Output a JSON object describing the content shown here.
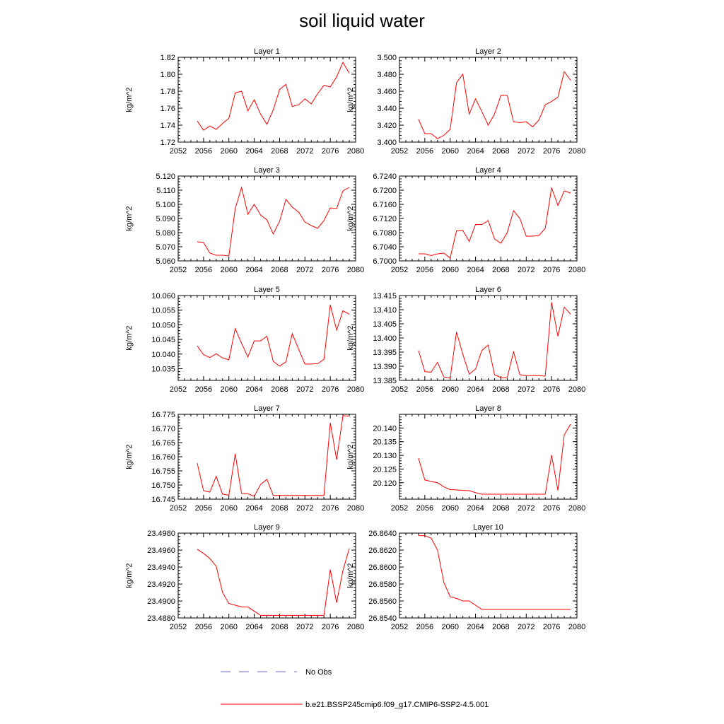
{
  "title": "soil liquid water",
  "ylabel": "kg/m^2",
  "xticks": [
    "2052",
    "2056",
    "2060",
    "2064",
    "2068",
    "2072",
    "2076",
    "2080"
  ],
  "legend": {
    "obs_label": "No Obs",
    "model_label": "b.e21.BSSP245cmip6.f09_g17.CMIP6-SSP2-4.5.001",
    "obs_color": "#6b6bd6",
    "model_color": "#ff0000"
  },
  "chart_data": [
    {
      "type": "line",
      "title": "Layer 1",
      "xlabel": "",
      "ylabel": "kg/m^2",
      "xlim": [
        2052,
        2080
      ],
      "ylim": [
        1.72,
        1.82
      ],
      "yticks": [
        "1.72",
        "1.74",
        "1.76",
        "1.78",
        "1.80",
        "1.82"
      ],
      "x": [
        2055,
        2056,
        2057,
        2058,
        2059,
        2060,
        2061,
        2062,
        2063,
        2064,
        2065,
        2066,
        2067,
        2068,
        2069,
        2070,
        2071,
        2072,
        2073,
        2074,
        2075,
        2076,
        2077,
        2078,
        2079
      ],
      "series": [
        {
          "name": "b.e21.BSSP245cmip6.f09_g17.CMIP6-SSP2-4.5.001",
          "values": [
            1.745,
            1.734,
            1.739,
            1.735,
            1.742,
            1.748,
            1.778,
            1.78,
            1.757,
            1.77,
            1.753,
            1.741,
            1.758,
            1.782,
            1.788,
            1.762,
            1.764,
            1.771,
            1.765,
            1.777,
            1.787,
            1.785,
            1.797,
            1.814,
            1.801
          ]
        }
      ]
    },
    {
      "type": "line",
      "title": "Layer 2",
      "xlabel": "",
      "ylabel": "kg/m^2",
      "xlim": [
        2052,
        2080
      ],
      "ylim": [
        3.4,
        3.5
      ],
      "yticks": [
        "3.400",
        "3.420",
        "3.440",
        "3.460",
        "3.480",
        "3.500"
      ],
      "x": [
        2055,
        2056,
        2057,
        2058,
        2059,
        2060,
        2061,
        2062,
        2063,
        2064,
        2065,
        2066,
        2067,
        2068,
        2069,
        2070,
        2071,
        2072,
        2073,
        2074,
        2075,
        2076,
        2077,
        2078,
        2079
      ],
      "series": [
        {
          "name": "b.e21.BSSP245cmip6.f09_g17.CMIP6-SSP2-4.5.001",
          "values": [
            3.427,
            3.41,
            3.41,
            3.404,
            3.408,
            3.415,
            3.47,
            3.48,
            3.433,
            3.451,
            3.436,
            3.42,
            3.433,
            3.455,
            3.455,
            3.424,
            3.423,
            3.424,
            3.418,
            3.426,
            3.444,
            3.448,
            3.453,
            3.483,
            3.473
          ]
        }
      ]
    },
    {
      "type": "line",
      "title": "Layer 3",
      "xlabel": "",
      "ylabel": "kg/m^2",
      "xlim": [
        2052,
        2080
      ],
      "ylim": [
        5.06,
        5.12
      ],
      "yticks": [
        "5.060",
        "5.070",
        "5.080",
        "5.090",
        "5.100",
        "5.110",
        "5.120"
      ],
      "x": [
        2055,
        2056,
        2057,
        2058,
        2059,
        2060,
        2061,
        2062,
        2063,
        2064,
        2065,
        2066,
        2067,
        2068,
        2069,
        2070,
        2071,
        2072,
        2073,
        2074,
        2075,
        2076,
        2077,
        2078,
        2079
      ],
      "series": [
        {
          "name": "b.e21.BSSP245cmip6.f09_g17.CMIP6-SSP2-4.5.001",
          "values": [
            5.0735,
            5.073,
            5.0655,
            5.064,
            5.064,
            5.0635,
            5.097,
            5.112,
            5.093,
            5.1,
            5.0925,
            5.089,
            5.079,
            5.088,
            5.1035,
            5.098,
            5.0945,
            5.0875,
            5.085,
            5.083,
            5.0885,
            5.0975,
            5.097,
            5.1095,
            5.112
          ]
        }
      ]
    },
    {
      "type": "line",
      "title": "Layer 4",
      "xlabel": "",
      "ylabel": "kg/m^2",
      "xlim": [
        2052,
        2080
      ],
      "ylim": [
        6.7,
        6.724
      ],
      "yticks": [
        "6.7000",
        "6.7040",
        "6.7080",
        "6.7120",
        "6.7160",
        "6.7200",
        "6.7240"
      ],
      "x": [
        2055,
        2056,
        2057,
        2058,
        2059,
        2060,
        2061,
        2062,
        2063,
        2064,
        2065,
        2066,
        2067,
        2068,
        2069,
        2070,
        2071,
        2072,
        2073,
        2074,
        2075,
        2076,
        2077,
        2078,
        2079
      ],
      "series": [
        {
          "name": "b.e21.BSSP245cmip6.f09_g17.CMIP6-SSP2-4.5.001",
          "values": [
            6.702,
            6.702,
            6.7015,
            6.702,
            6.7022,
            6.7008,
            6.7085,
            6.7086,
            6.7055,
            6.7103,
            6.7103,
            6.7114,
            6.7062,
            6.705,
            6.708,
            6.7142,
            6.712,
            6.707,
            6.707,
            6.7072,
            6.7092,
            6.7207,
            6.7157,
            6.7198,
            6.7192
          ]
        }
      ]
    },
    {
      "type": "line",
      "title": "Layer 5",
      "xlabel": "",
      "ylabel": "kg/m^2",
      "xlim": [
        2052,
        2080
      ],
      "ylim": [
        10.031,
        10.06
      ],
      "yticks": [
        "10.035",
        "10.040",
        "10.045",
        "10.050",
        "10.055",
        "10.060"
      ],
      "x": [
        2055,
        2056,
        2057,
        2058,
        2059,
        2060,
        2061,
        2062,
        2063,
        2064,
        2065,
        2066,
        2067,
        2068,
        2069,
        2070,
        2071,
        2072,
        2073,
        2074,
        2075,
        2076,
        2077,
        2078,
        2079
      ],
      "series": [
        {
          "name": "b.e21.BSSP245cmip6.f09_g17.CMIP6-SSP2-4.5.001",
          "values": [
            10.0428,
            10.0398,
            10.0388,
            10.0401,
            10.0387,
            10.038,
            10.0487,
            10.0437,
            10.039,
            10.0445,
            10.0445,
            10.0461,
            10.0375,
            10.0359,
            10.0373,
            10.047,
            10.0417,
            10.0366,
            10.0366,
            10.0367,
            10.0382,
            10.0568,
            10.0482,
            10.0548,
            10.0536
          ]
        }
      ]
    },
    {
      "type": "line",
      "title": "Layer 6",
      "xlabel": "",
      "ylabel": "kg/m^2",
      "xlim": [
        2052,
        2080
      ],
      "ylim": [
        13.385,
        13.415
      ],
      "yticks": [
        "13.385",
        "13.390",
        "13.395",
        "13.400",
        "13.405",
        "13.410",
        "13.415"
      ],
      "x": [
        2055,
        2056,
        2057,
        2058,
        2059,
        2060,
        2061,
        2062,
        2063,
        2064,
        2065,
        2066,
        2067,
        2068,
        2069,
        2070,
        2071,
        2072,
        2073,
        2074,
        2075,
        2076,
        2077,
        2078,
        2079
      ],
      "series": [
        {
          "name": "b.e21.BSSP245cmip6.f09_g17.CMIP6-SSP2-4.5.001",
          "values": [
            13.3956,
            13.3881,
            13.3879,
            13.3914,
            13.3862,
            13.3858,
            13.4021,
            13.3942,
            13.3872,
            13.389,
            13.3956,
            13.3975,
            13.387,
            13.386,
            13.386,
            13.3951,
            13.387,
            13.3867,
            13.3867,
            13.3867,
            13.3865,
            13.4126,
            13.4006,
            13.4109,
            13.4084
          ]
        }
      ]
    },
    {
      "type": "line",
      "title": "Layer 7",
      "xlabel": "",
      "ylabel": "kg/m^2",
      "xlim": [
        2052,
        2080
      ],
      "ylim": [
        16.745,
        16.775
      ],
      "yticks": [
        "16.745",
        "16.750",
        "16.755",
        "16.760",
        "16.765",
        "16.770",
        "16.775"
      ],
      "x": [
        2055,
        2056,
        2057,
        2058,
        2059,
        2060,
        2061,
        2062,
        2063,
        2064,
        2065,
        2066,
        2067,
        2068,
        2069,
        2070,
        2071,
        2072,
        2073,
        2074,
        2075,
        2076,
        2077,
        2078,
        2079
      ],
      "series": [
        {
          "name": "b.e21.BSSP245cmip6.f09_g17.CMIP6-SSP2-4.5.001",
          "values": [
            16.7578,
            16.748,
            16.7475,
            16.7531,
            16.7468,
            16.7464,
            16.761,
            16.747,
            16.7469,
            16.746,
            16.7502,
            16.752,
            16.7463,
            16.7463,
            16.7463,
            16.7463,
            16.7463,
            16.7463,
            16.7463,
            16.7463,
            16.7463,
            16.772,
            16.759,
            16.7745,
            16.7744
          ]
        }
      ]
    },
    {
      "type": "line",
      "title": "Layer 8",
      "xlabel": "",
      "ylabel": "kg/m^2",
      "xlim": [
        2052,
        2080
      ],
      "ylim": [
        20.114,
        20.145
      ],
      "yticks": [
        "20.120",
        "20.125",
        "20.130",
        "20.135",
        "20.140"
      ],
      "x": [
        2055,
        2056,
        2057,
        2058,
        2059,
        2060,
        2061,
        2062,
        2063,
        2064,
        2065,
        2066,
        2067,
        2068,
        2069,
        2070,
        2071,
        2072,
        2073,
        2074,
        2075,
        2076,
        2077,
        2078,
        2079
      ],
      "series": [
        {
          "name": "b.e21.BSSP245cmip6.f09_g17.CMIP6-SSP2-4.5.001",
          "values": [
            20.129,
            20.121,
            20.1205,
            20.12,
            20.1185,
            20.1175,
            20.1174,
            20.1172,
            20.1171,
            20.1164,
            20.1158,
            20.1158,
            20.1158,
            20.1158,
            20.1158,
            20.1158,
            20.1158,
            20.1158,
            20.1158,
            20.1158,
            20.1158,
            20.1301,
            20.1172,
            20.1375,
            20.1414
          ]
        }
      ]
    },
    {
      "type": "line",
      "title": "Layer 9",
      "xlabel": "",
      "ylabel": "kg/m^2",
      "xlim": [
        2052,
        2080
      ],
      "ylim": [
        23.488,
        23.498
      ],
      "yticks": [
        "23.4880",
        "23.4900",
        "23.4920",
        "23.4940",
        "23.4960",
        "23.4980"
      ],
      "x": [
        2055,
        2056,
        2057,
        2058,
        2059,
        2060,
        2061,
        2062,
        2063,
        2064,
        2065,
        2066,
        2067,
        2068,
        2069,
        2070,
        2071,
        2072,
        2073,
        2074,
        2075,
        2076,
        2077,
        2078,
        2079
      ],
      "series": [
        {
          "name": "b.e21.BSSP245cmip6.f09_g17.CMIP6-SSP2-4.5.001",
          "values": [
            23.4961,
            23.4956,
            23.495,
            23.4941,
            23.491,
            23.4897,
            23.4895,
            23.4893,
            23.4893,
            23.4888,
            23.4883,
            23.4883,
            23.4883,
            23.4883,
            23.4883,
            23.4883,
            23.4883,
            23.4883,
            23.4883,
            23.4883,
            23.4883,
            23.4937,
            23.4898,
            23.4936,
            23.4962
          ]
        }
      ]
    },
    {
      "type": "line",
      "title": "Layer 10",
      "xlabel": "",
      "ylabel": "kg/m^2",
      "xlim": [
        2052,
        2080
      ],
      "ylim": [
        26.854,
        26.864
      ],
      "yticks": [
        "26.8540",
        "26.8560",
        "26.8580",
        "26.8600",
        "26.8620",
        "26.8640"
      ],
      "x": [
        2055,
        2056,
        2057,
        2058,
        2059,
        2060,
        2061,
        2062,
        2063,
        2064,
        2065,
        2066,
        2067,
        2068,
        2069,
        2070,
        2071,
        2072,
        2073,
        2074,
        2075,
        2076,
        2077,
        2078,
        2079
      ],
      "series": [
        {
          "name": "b.e21.BSSP245cmip6.f09_g17.CMIP6-SSP2-4.5.001",
          "values": [
            26.8637,
            26.8637,
            26.8634,
            26.862,
            26.8582,
            26.8565,
            26.8563,
            26.856,
            26.856,
            26.8555,
            26.855,
            26.855,
            26.855,
            26.855,
            26.855,
            26.855,
            26.855,
            26.855,
            26.855,
            26.855,
            26.855,
            26.855,
            26.855,
            26.855,
            26.855
          ]
        }
      ]
    }
  ]
}
